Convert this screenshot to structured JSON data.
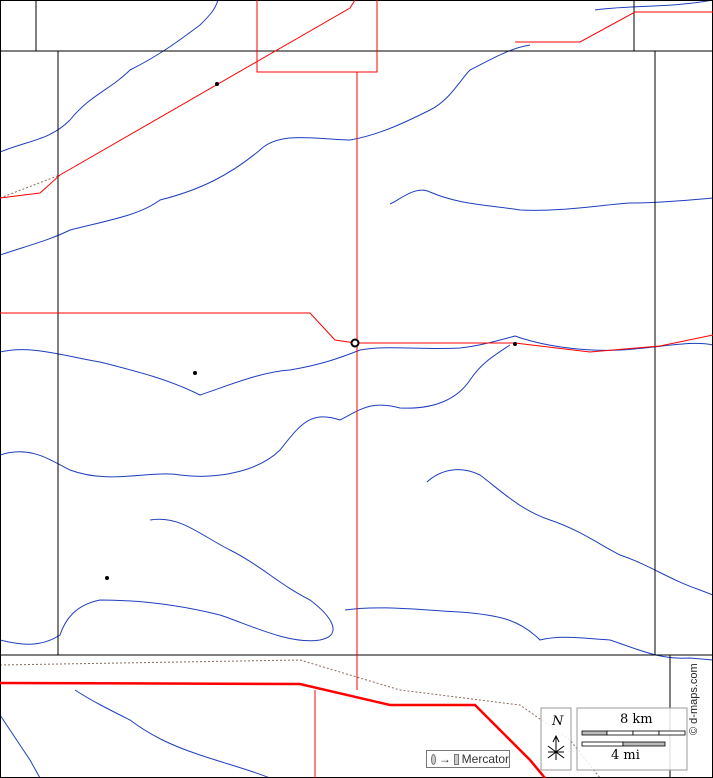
{
  "map": {
    "projection_label": "Mercator",
    "north_label": "N",
    "scale_km_label": "8 km",
    "scale_mi_label": "4 mi",
    "credit": "© d-maps.com",
    "colors": {
      "border": "#000000",
      "road": "#ff0000",
      "river": "#1f3fbf",
      "railway": "#8b6b5b"
    },
    "icons": [
      "compass-icon",
      "circle-icon",
      "square-icon",
      "arrow-right-icon"
    ]
  }
}
